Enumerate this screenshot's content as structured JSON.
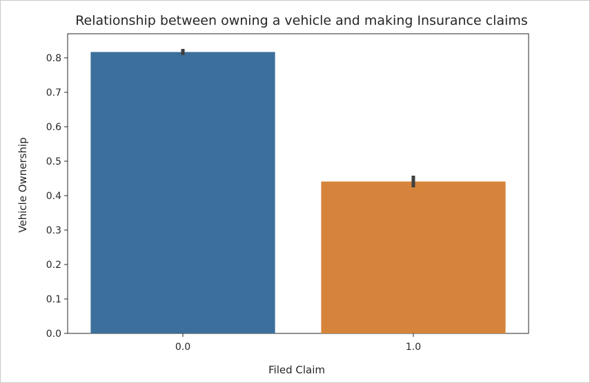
{
  "chart_data": {
    "type": "bar",
    "title": "Relationship between owning a vehicle and making Insurance claims",
    "xlabel": "Filed Claim",
    "ylabel": "Vehicle Ownership",
    "categories": [
      "0.0",
      "1.0"
    ],
    "values": [
      0.817,
      0.441
    ],
    "error_bars": [
      [
        0.808,
        0.826
      ],
      [
        0.424,
        0.458
      ]
    ],
    "colors": [
      "#3c6f9b",
      "#d6843b"
    ],
    "ylim": [
      0.0,
      0.87
    ],
    "yticks": [
      "0.0",
      "0.1",
      "0.2",
      "0.3",
      "0.4",
      "0.5",
      "0.6",
      "0.7",
      "0.8"
    ],
    "grid": false
  }
}
